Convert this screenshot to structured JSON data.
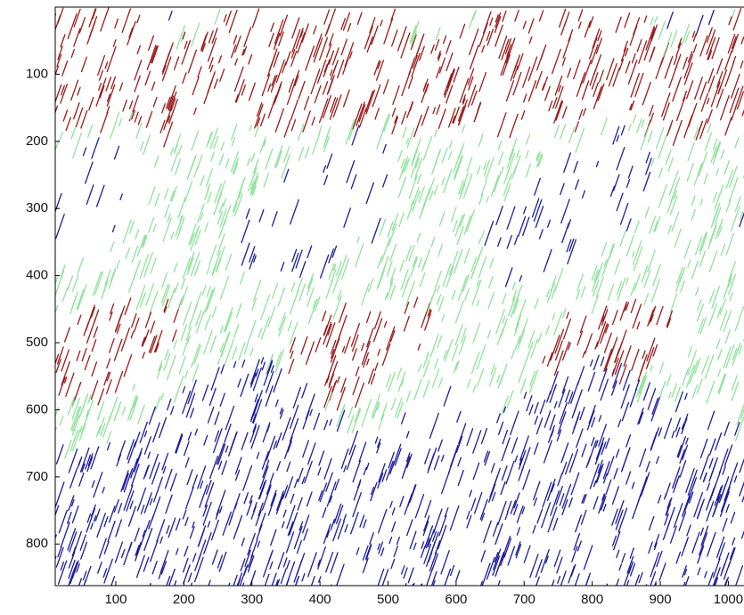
{
  "chart_data": {
    "type": "image",
    "xlim": [
      11,
      1023
    ],
    "ylim": [
      0,
      862
    ],
    "y_reversed": true,
    "xticks": [
      100,
      200,
      300,
      400,
      500,
      600,
      700,
      800,
      900,
      1000
    ],
    "yticks": [
      100,
      200,
      300,
      400,
      500,
      600,
      700,
      800
    ]
  }
}
